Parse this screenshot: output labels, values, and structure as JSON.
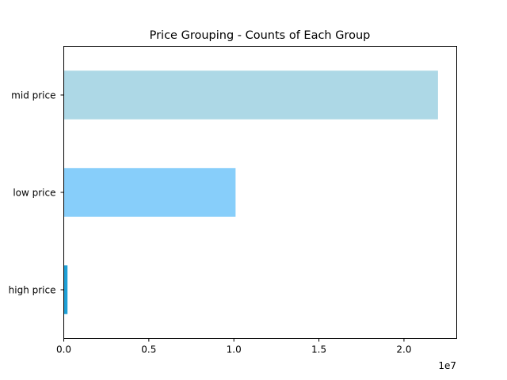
{
  "chart_data": {
    "type": "bar",
    "orientation": "horizontal",
    "title": "Price Grouping - Counts of Each Group",
    "xlabel": "",
    "ylabel": "",
    "categories": [
      "high price",
      "low price",
      "mid price"
    ],
    "values": [
      220000,
      10100000,
      22000000
    ],
    "colors": [
      "#1ea0d6",
      "#87cefa",
      "#add8e6"
    ],
    "xlim": [
      0,
      23100000
    ],
    "xticks": [
      0,
      5000000,
      10000000,
      15000000,
      20000000
    ],
    "xtick_labels": [
      "0.0",
      "0.5",
      "1.0",
      "1.5",
      "2.0"
    ],
    "x_offset_label": "1e7",
    "grid": false,
    "legend": false
  }
}
